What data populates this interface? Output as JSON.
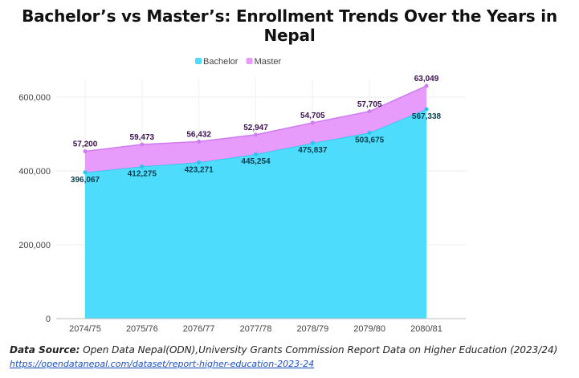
{
  "chart_data": {
    "type": "area",
    "stacked": true,
    "title": "Bachelor’s vs Master’s: Enrollment Trends Over the Years in Nepal",
    "categories": [
      "2074/75",
      "2075/76",
      "2076/77",
      "2077/78",
      "2078/79",
      "2079/80",
      "2080/81"
    ],
    "series": [
      {
        "name": "Bachelor",
        "values": [
          396067,
          412275,
          423271,
          445254,
          475837,
          503675,
          567338
        ],
        "color": "#4ddcfc",
        "line": "#2cc4ea",
        "labels": [
          "396,067",
          "412,275",
          "423,271",
          "445,254",
          "475,837",
          "503,675",
          "567,338"
        ],
        "label_color": "#0a3e4d"
      },
      {
        "name": "Master",
        "values": [
          57200,
          59473,
          56432,
          52947,
          54705,
          57705,
          63049
        ],
        "color": "#e79bfb",
        "line": "#cf7cf0",
        "labels": [
          "57,200",
          "59,473",
          "56,432",
          "52,947",
          "54,705",
          "57,705",
          "63,049"
        ],
        "label_color": "#3b1050"
      }
    ],
    "ylim": [
      0,
      650000
    ],
    "yticks": [
      0,
      200000,
      400000,
      600000
    ],
    "ytick_labels": [
      "0",
      "200,000",
      "400,000",
      "600,000"
    ],
    "legend": "top-center",
    "grid": true
  },
  "source": {
    "label": "Data Source:",
    "text": " Open Data Nepal(ODN),University Grants Commission Report Data on Higher Education (2023/24)",
    "url": "https://opendatanepal.com/dataset/report-higher-education-2023-24"
  }
}
